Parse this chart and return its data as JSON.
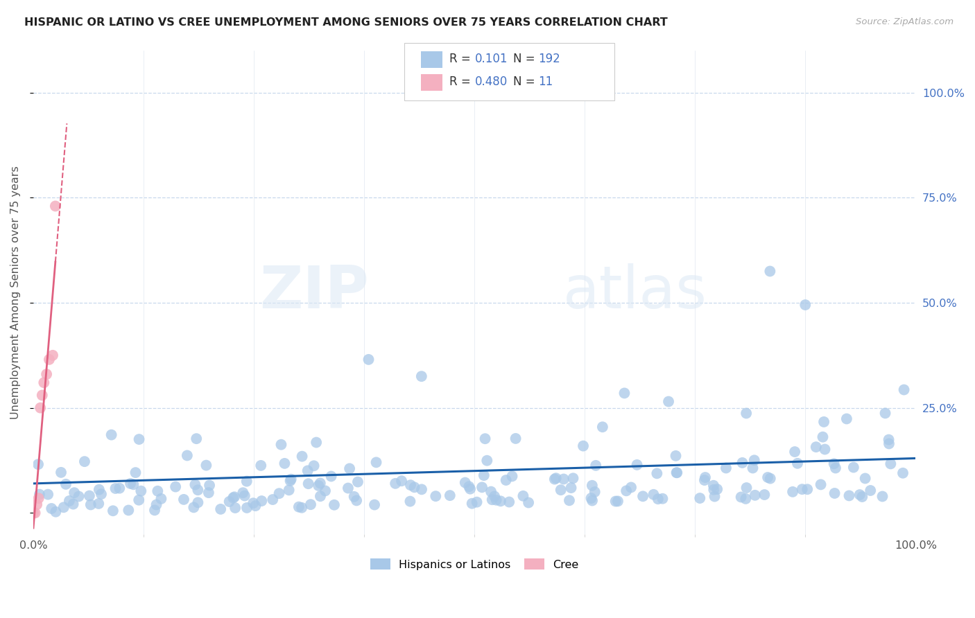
{
  "title": "HISPANIC OR LATINO VS CREE UNEMPLOYMENT AMONG SENIORS OVER 75 YEARS CORRELATION CHART",
  "source": "Source: ZipAtlas.com",
  "ylabel": "Unemployment Among Seniors over 75 years",
  "xlim": [
    0.0,
    1.0
  ],
  "ylim": [
    -0.05,
    1.1
  ],
  "xtick_positions": [
    0.0,
    1.0
  ],
  "xticklabels": [
    "0.0%",
    "100.0%"
  ],
  "ytick_positions": [
    0.0,
    0.25,
    0.5,
    0.75,
    1.0
  ],
  "yticklabels_right": [
    "",
    "25.0%",
    "50.0%",
    "75.0%",
    "100.0%"
  ],
  "r_blue": 0.101,
  "n_blue": 192,
  "r_pink": 0.48,
  "n_pink": 11,
  "blue_color": "#a8c8e8",
  "pink_color": "#f4b0c0",
  "blue_line_color": "#1a5fa8",
  "pink_line_color": "#e06080",
  "value_text_color": "#4472c4",
  "background_color": "#ffffff",
  "grid_color": "#c8d8ec",
  "seed": 42
}
